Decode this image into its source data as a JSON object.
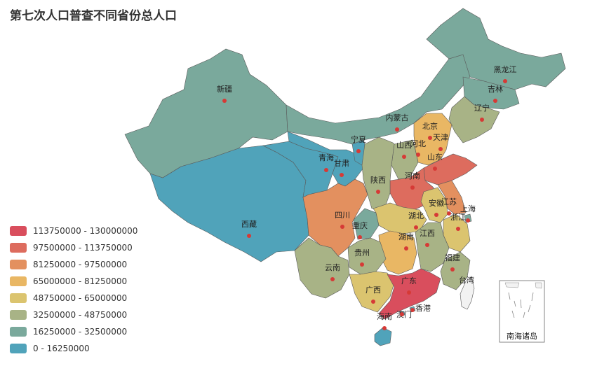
{
  "title": "第七次人口普查不同省份总人口",
  "colors": {
    "bands": [
      "#d94e5d",
      "#dd6c5e",
      "#e3905f",
      "#e9b764",
      "#dbc46f",
      "#a8b386",
      "#7aa99c",
      "#50a3ba"
    ],
    "dot": "#d63a36",
    "taiwan": "#f2f2f2"
  },
  "legend": [
    {
      "label": "113750000 - 130000000",
      "color": "#d94e5d"
    },
    {
      "label": "97500000 - 113750000",
      "color": "#dd6c5e"
    },
    {
      "label": "81250000 - 97500000",
      "color": "#e3905f"
    },
    {
      "label": "65000000 - 81250000",
      "color": "#e9b764"
    },
    {
      "label": "48750000 - 65000000",
      "color": "#dbc46f"
    },
    {
      "label": "32500000 - 48750000",
      "color": "#a8b386"
    },
    {
      "label": "16250000 - 32500000",
      "color": "#7aa99c"
    },
    {
      "label": "0 - 16250000",
      "color": "#50a3ba"
    }
  ],
  "inset_label": "南海诸岛",
  "chart_data": {
    "type": "map",
    "title": "第七次人口普查不同省份总人口",
    "visual_map": {
      "min": 0,
      "max": 130000000,
      "pieces": 8,
      "ranges": [
        [
          113750000,
          130000000
        ],
        [
          97500000,
          113750000
        ],
        [
          81250000,
          97500000
        ],
        [
          65000000,
          81250000
        ],
        [
          48750000,
          65000000
        ],
        [
          32500000,
          48750000
        ],
        [
          16250000,
          32500000
        ],
        [
          0,
          16250000
        ]
      ]
    },
    "regions": [
      {
        "name": "新疆",
        "band": 6
      },
      {
        "name": "西藏",
        "band": 7
      },
      {
        "name": "青海",
        "band": 7
      },
      {
        "name": "甘肃",
        "band": 7
      },
      {
        "name": "宁夏",
        "band": 7
      },
      {
        "name": "内蒙古",
        "band": 6
      },
      {
        "name": "黑龙江",
        "band": 6
      },
      {
        "name": "吉林",
        "band": 6
      },
      {
        "name": "辽宁",
        "band": 5
      },
      {
        "name": "北京",
        "band": 6
      },
      {
        "name": "天津",
        "band": 7
      },
      {
        "name": "河北",
        "band": 3
      },
      {
        "name": "山西",
        "band": 5
      },
      {
        "name": "山东",
        "band": 1
      },
      {
        "name": "河南",
        "band": 1
      },
      {
        "name": "陕西",
        "band": 5
      },
      {
        "name": "四川",
        "band": 2
      },
      {
        "name": "重庆",
        "band": 6
      },
      {
        "name": "湖北",
        "band": 4
      },
      {
        "name": "安徽",
        "band": 4
      },
      {
        "name": "江苏",
        "band": 2
      },
      {
        "name": "上海",
        "band": 6
      },
      {
        "name": "浙江",
        "band": 4
      },
      {
        "name": "湖南",
        "band": 3
      },
      {
        "name": "江西",
        "band": 5
      },
      {
        "name": "福建",
        "band": 5
      },
      {
        "name": "贵州",
        "band": 5
      },
      {
        "name": "云南",
        "band": 5
      },
      {
        "name": "广西",
        "band": 4
      },
      {
        "name": "广东",
        "band": 0
      },
      {
        "name": "海南",
        "band": 7
      },
      {
        "name": "香港",
        "band": 7
      },
      {
        "name": "澳门",
        "band": 7
      },
      {
        "name": "台湾"
      }
    ]
  }
}
